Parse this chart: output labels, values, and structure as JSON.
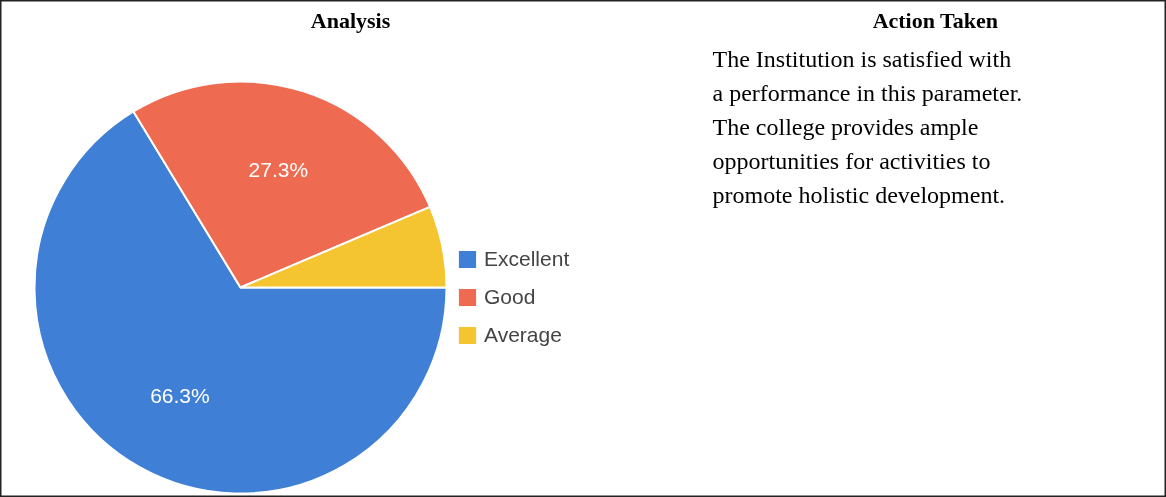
{
  "chart_data": {
    "type": "pie",
    "title": "Analysis",
    "categories": [
      "Excellent",
      "Good",
      "Average"
    ],
    "values": [
      66.3,
      27.3,
      6.4
    ],
    "colors": [
      "#3f7fd6",
      "#ee6a50",
      "#f5c431"
    ],
    "value_labels": [
      "66.3%",
      "27.3%",
      null
    ],
    "legend": "right",
    "annotations": [
      "Action Taken",
      "The Institution is satisfied with a performance in this parameter. The college provides ample opportunities for activities to promote holistic development."
    ]
  }
}
